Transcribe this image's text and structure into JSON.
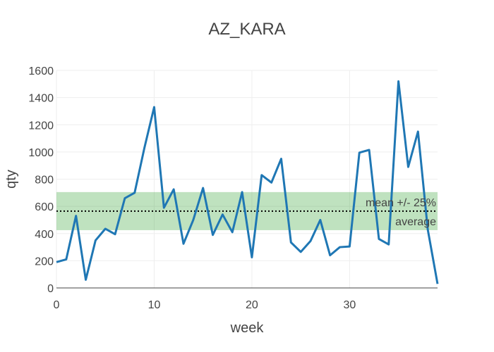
{
  "chart_data": {
    "type": "line",
    "title": "AZ_KARA",
    "xlabel": "week",
    "ylabel": "qty",
    "xlim": [
      0,
      39
    ],
    "ylim": [
      0,
      1600
    ],
    "xticks": [
      0,
      10,
      20,
      30
    ],
    "yticks": [
      0,
      200,
      400,
      600,
      800,
      1000,
      1200,
      1400,
      1600
    ],
    "grid": true,
    "series": [
      {
        "color": "#1f77b4",
        "x": [
          0,
          1,
          2,
          3,
          4,
          5,
          6,
          7,
          8,
          9,
          10,
          11,
          12,
          13,
          14,
          15,
          16,
          17,
          18,
          19,
          20,
          21,
          22,
          23,
          24,
          25,
          26,
          27,
          28,
          29,
          30,
          31,
          32,
          33,
          34,
          35,
          36,
          37,
          38,
          39
        ],
        "y": [
          190,
          210,
          530,
          60,
          350,
          435,
          395,
          660,
          700,
          1030,
          1330,
          590,
          725,
          325,
          500,
          735,
          390,
          540,
          410,
          705,
          225,
          830,
          775,
          950,
          335,
          265,
          345,
          500,
          240,
          300,
          305,
          995,
          1015,
          360,
          320,
          1520,
          890,
          1150,
          430,
          30
        ]
      }
    ],
    "band": {
      "low": 425,
      "high": 705,
      "color": "#2ca02c",
      "label": "mean +/- 25%"
    },
    "average": {
      "value": 565,
      "label": "average"
    }
  }
}
